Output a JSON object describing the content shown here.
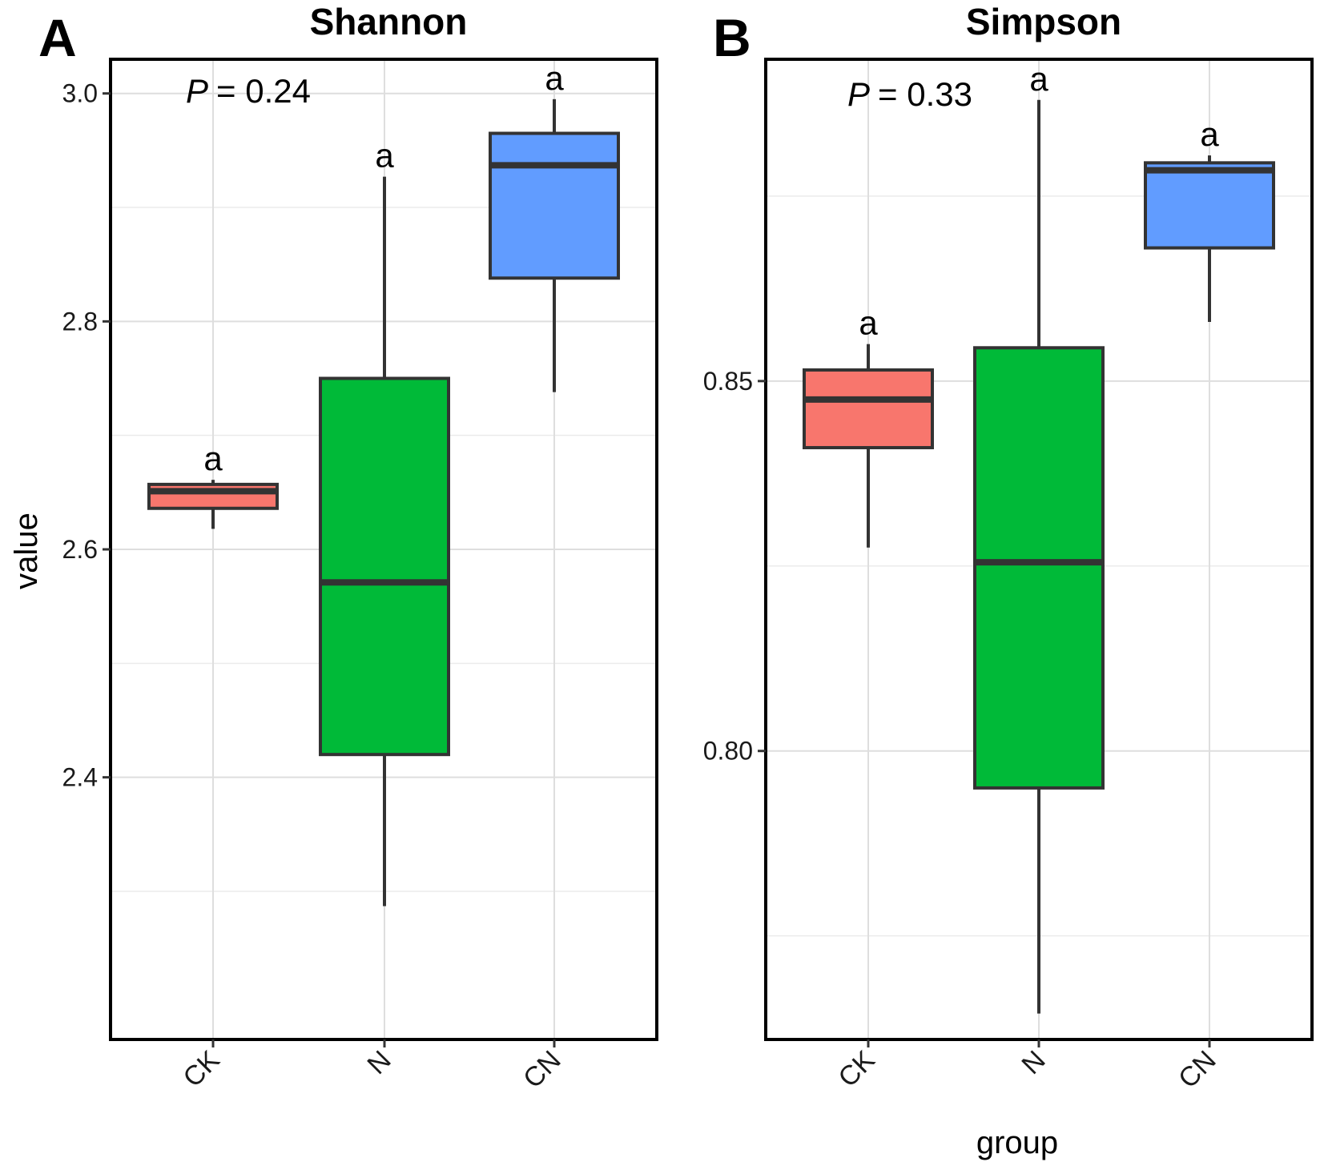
{
  "chart_data": [
    {
      "type": "box",
      "panel_label": "A",
      "title": "Shannon",
      "categories": [
        "CK",
        "N",
        "CN"
      ],
      "colors": [
        "#F8766D",
        "#00BA38",
        "#619CFF"
      ],
      "boxes": [
        {
          "group": "CK",
          "min": 2.618,
          "q1": 2.636,
          "median": 2.651,
          "q3": 2.657,
          "max": 2.661
        },
        {
          "group": "N",
          "min": 2.287,
          "q1": 2.42,
          "median": 2.571,
          "q3": 2.75,
          "max": 2.927
        },
        {
          "group": "CN",
          "min": 2.738,
          "q1": 2.838,
          "median": 2.937,
          "q3": 2.965,
          "max": 2.995
        }
      ],
      "significance_letters": [
        "a",
        "a",
        "a"
      ],
      "p_label": "P",
      "p_value": "= 0.24",
      "ylabel": "value",
      "xlabel": "",
      "ylim": [
        2.17,
        3.03
      ],
      "y_ticks": [
        "2.4",
        "2.6",
        "2.8",
        "3.0"
      ],
      "y_tick_values": [
        2.4,
        2.6,
        2.8,
        3.0
      ],
      "y_minor_grid": [
        2.3,
        2.5,
        2.7,
        2.9
      ],
      "grid": true
    },
    {
      "type": "box",
      "panel_label": "B",
      "title": "Simpson",
      "categories": [
        "CK",
        "N",
        "CN"
      ],
      "colors": [
        "#F8766D",
        "#00BA38",
        "#619CFF"
      ],
      "boxes": [
        {
          "group": "CK",
          "min": 0.8275,
          "q1": 0.841,
          "median": 0.8475,
          "q3": 0.8515,
          "max": 0.855
        },
        {
          "group": "N",
          "min": 0.7645,
          "q1": 0.795,
          "median": 0.8255,
          "q3": 0.8545,
          "max": 0.888
        },
        {
          "group": "CN",
          "min": 0.858,
          "q1": 0.868,
          "median": 0.8785,
          "q3": 0.8795,
          "max": 0.8805
        }
      ],
      "significance_letters": [
        "a",
        "a",
        "a"
      ],
      "p_label": "P",
      "p_value": "= 0.33",
      "ylabel": "",
      "xlabel": "group",
      "ylim": [
        0.761,
        0.8935
      ],
      "y_ticks": [
        "0.80",
        "0.85"
      ],
      "y_tick_values": [
        0.8,
        0.85
      ],
      "y_minor_grid": [
        0.775,
        0.825,
        0.875
      ],
      "grid": true
    }
  ]
}
